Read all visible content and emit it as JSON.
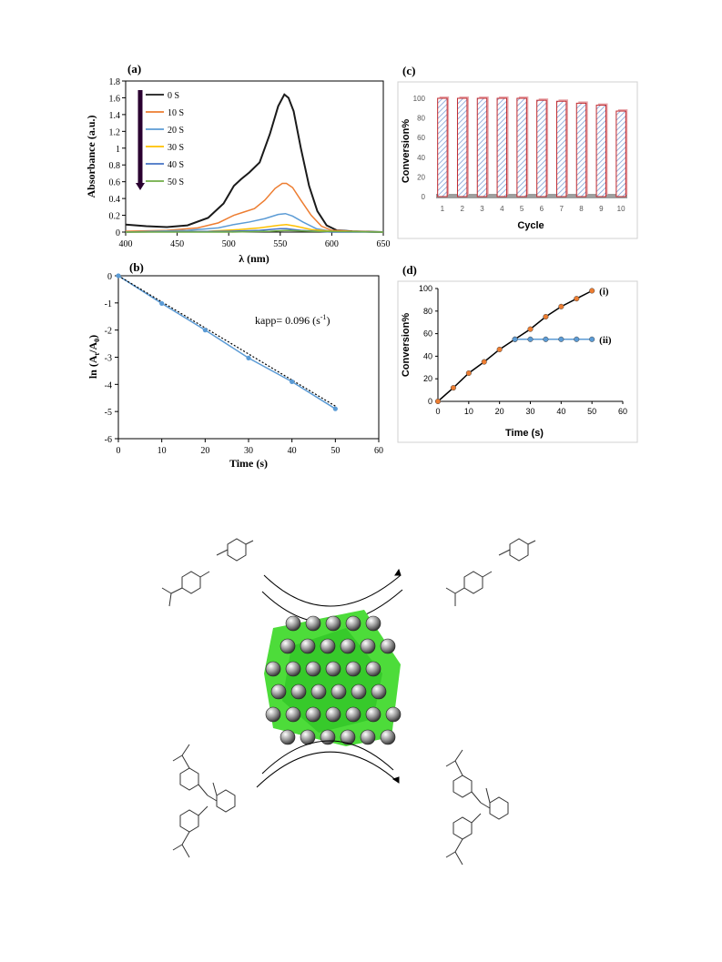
{
  "panels": {
    "a": "(a)",
    "b": "(b)",
    "c": "(c)",
    "d": "(d)"
  },
  "chart_data": [
    {
      "id": "a",
      "type": "line",
      "xlabel": "λ (nm)",
      "ylabel": "Absorbance (a.u.)",
      "xlim": [
        400,
        650
      ],
      "ylim": [
        0,
        1.8
      ],
      "xticks": [
        400,
        450,
        500,
        550,
        600,
        650
      ],
      "yticks": [
        0,
        0.2,
        0.4,
        0.6,
        0.8,
        1,
        1.2,
        1.4,
        1.6,
        1.8
      ],
      "legend_position": "top-left",
      "series": [
        {
          "name": "0 S",
          "color": "#1a1a1a",
          "x": [
            400,
            420,
            440,
            460,
            480,
            495,
            505,
            512,
            520,
            530,
            540,
            548,
            554,
            558,
            563,
            570,
            578,
            586,
            595,
            605,
            620,
            650
          ],
          "y": [
            0.09,
            0.07,
            0.06,
            0.08,
            0.17,
            0.34,
            0.55,
            0.63,
            0.71,
            0.83,
            1.17,
            1.5,
            1.64,
            1.6,
            1.44,
            1.0,
            0.55,
            0.25,
            0.08,
            0.02,
            0.01,
            0.0
          ]
        },
        {
          "name": "10 S",
          "color": "#ed7d31",
          "x": [
            400,
            440,
            470,
            490,
            505,
            515,
            525,
            535,
            545,
            552,
            556,
            562,
            570,
            580,
            590,
            600,
            620,
            650
          ],
          "y": [
            0.01,
            0.02,
            0.05,
            0.11,
            0.2,
            0.24,
            0.28,
            0.38,
            0.52,
            0.58,
            0.58,
            0.53,
            0.38,
            0.2,
            0.07,
            0.02,
            0.01,
            0.0
          ]
        },
        {
          "name": "20 S",
          "color": "#5b9bd5",
          "x": [
            400,
            460,
            490,
            505,
            520,
            535,
            548,
            555,
            562,
            572,
            585,
            600,
            650
          ],
          "y": [
            0.0,
            0.02,
            0.05,
            0.09,
            0.12,
            0.16,
            0.21,
            0.22,
            0.19,
            0.12,
            0.04,
            0.01,
            0.0
          ]
        },
        {
          "name": "30 S",
          "color": "#ffc000",
          "x": [
            400,
            480,
            510,
            530,
            548,
            556,
            565,
            580,
            600,
            650
          ],
          "y": [
            0.0,
            0.01,
            0.03,
            0.05,
            0.08,
            0.09,
            0.07,
            0.03,
            0.01,
            0.0
          ]
        },
        {
          "name": "40 S",
          "color": "#4472c4",
          "x": [
            400,
            500,
            530,
            550,
            556,
            570,
            600,
            650
          ],
          "y": [
            0.0,
            0.01,
            0.02,
            0.04,
            0.04,
            0.02,
            0.0,
            0.0
          ]
        },
        {
          "name": "50 S",
          "color": "#70ad47",
          "x": [
            400,
            500,
            540,
            556,
            580,
            650
          ],
          "y": [
            0.0,
            0.0,
            0.01,
            0.02,
            0.01,
            0.0
          ]
        }
      ]
    },
    {
      "id": "b",
      "type": "scatter",
      "xlabel": "Time (s)",
      "ylabel_main": "ln (A",
      "ylabel_sub_t": "t",
      "ylabel_mid": "/A",
      "ylabel_sub_0": "0",
      "ylabel_end": ")",
      "xlim": [
        0,
        60
      ],
      "ylim": [
        -6,
        0
      ],
      "xticks": [
        0,
        10,
        20,
        30,
        40,
        50,
        60
      ],
      "yticks": [
        0,
        -1,
        -2,
        -3,
        -4,
        -5,
        -6
      ],
      "annotation_main": "kapp= 0.096 (s",
      "annotation_sup": "-1",
      "annotation_end": ")",
      "x": [
        0,
        10,
        20,
        30,
        40,
        50
      ],
      "y": [
        0,
        -1.02,
        -2.0,
        -3.03,
        -3.9,
        -4.9
      ],
      "fit_slope": -0.096
    },
    {
      "id": "c",
      "type": "bar",
      "xlabel": "Cycle",
      "ylabel": "Conversion%",
      "ylim": [
        0,
        100
      ],
      "yticks": [
        0,
        20,
        40,
        60,
        80,
        100
      ],
      "categories": [
        "1",
        "2",
        "3",
        "4",
        "5",
        "6",
        "7",
        "8",
        "9",
        "10"
      ],
      "values": [
        100,
        100,
        100,
        100,
        100,
        98,
        97,
        95,
        93,
        87
      ]
    },
    {
      "id": "d",
      "type": "line",
      "xlabel": "Time (s)",
      "ylabel": "Conversion%",
      "xlim": [
        0,
        60
      ],
      "ylim": [
        0,
        100
      ],
      "xticks": [
        0,
        10,
        20,
        30,
        40,
        50,
        60
      ],
      "yticks": [
        0,
        20,
        40,
        60,
        80,
        100
      ],
      "series": [
        {
          "name": "(i)",
          "color": "#ed7d31",
          "x": [
            0,
            5,
            10,
            15,
            20,
            25,
            30,
            35,
            40,
            45,
            50
          ],
          "y": [
            0,
            12,
            25,
            35,
            46,
            55,
            64,
            75,
            84,
            91,
            98
          ]
        },
        {
          "name": "(ii)",
          "color": "#5b9bd5",
          "x": [
            25,
            30,
            35,
            40,
            45,
            50
          ],
          "y": [
            55,
            55,
            55,
            55,
            55,
            55
          ]
        }
      ]
    }
  ]
}
